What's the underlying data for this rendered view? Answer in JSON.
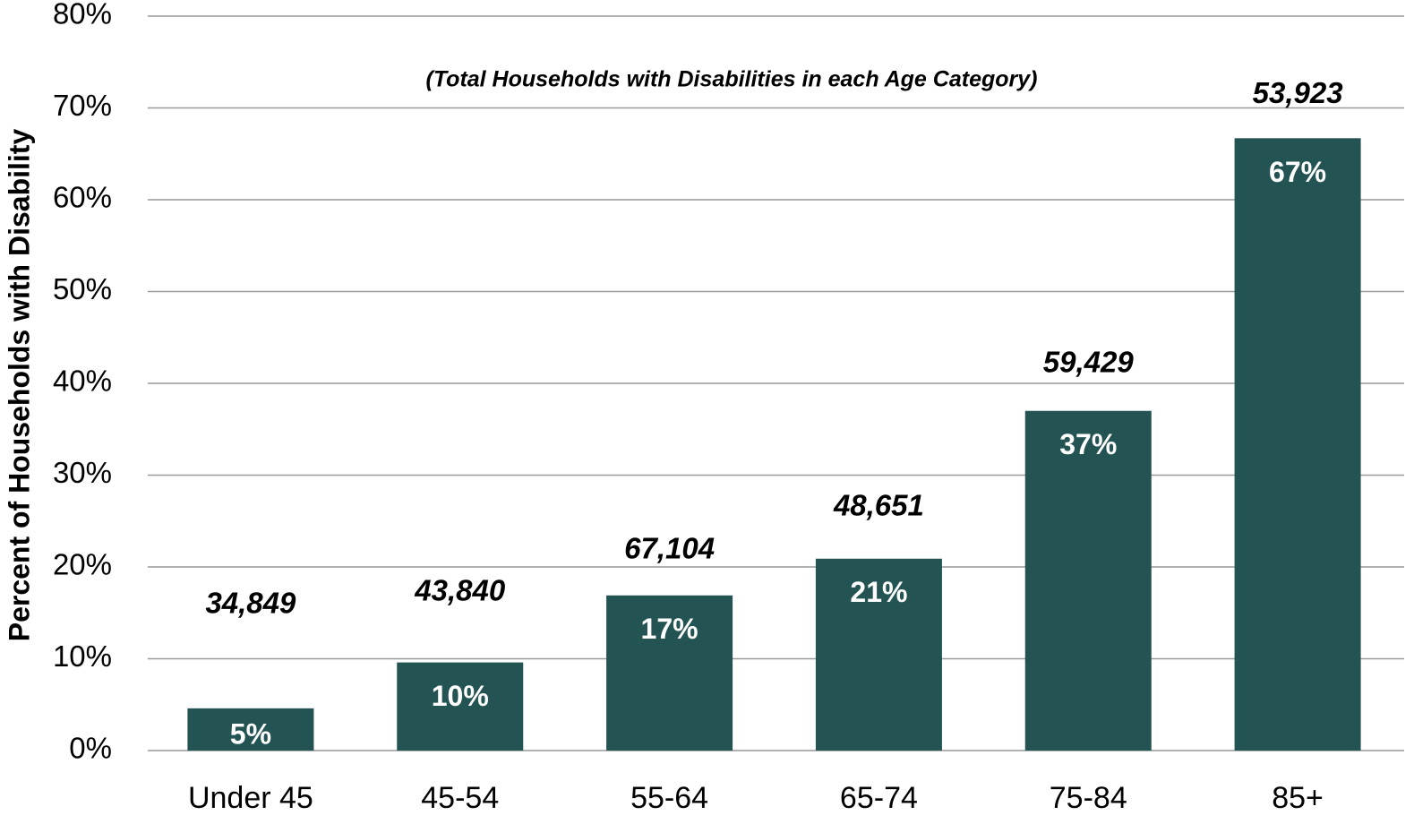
{
  "chart_data": {
    "type": "bar",
    "subtitle": "(Total Households with Disabilities in each Age Category)",
    "y_label": "Percent of Households with Disability",
    "categories": [
      "Under 45",
      "45-54",
      "55-64",
      "65-74",
      "75-84",
      "85+"
    ],
    "values": [
      4.6,
      9.6,
      16.9,
      20.9,
      37.0,
      66.7
    ],
    "value_labels": [
      "5%",
      "10%",
      "17%",
      "21%",
      "37%",
      "67%"
    ],
    "annotations": [
      "34,849",
      "43,840",
      "67,104",
      "48,651",
      "59,429",
      "53,923"
    ],
    "color": "#235352",
    "ylim": [
      0,
      80
    ],
    "yticks": [
      {
        "value": 0,
        "label": "0%"
      },
      {
        "value": 10,
        "label": "10%"
      },
      {
        "value": 20,
        "label": "20%"
      },
      {
        "value": 30,
        "label": "30%"
      },
      {
        "value": 40,
        "label": "40%"
      },
      {
        "value": 50,
        "label": "50%"
      },
      {
        "value": 60,
        "label": "60%"
      },
      {
        "value": 70,
        "label": "70%"
      },
      {
        "value": 80,
        "label": "80%"
      }
    ],
    "grid": true
  }
}
